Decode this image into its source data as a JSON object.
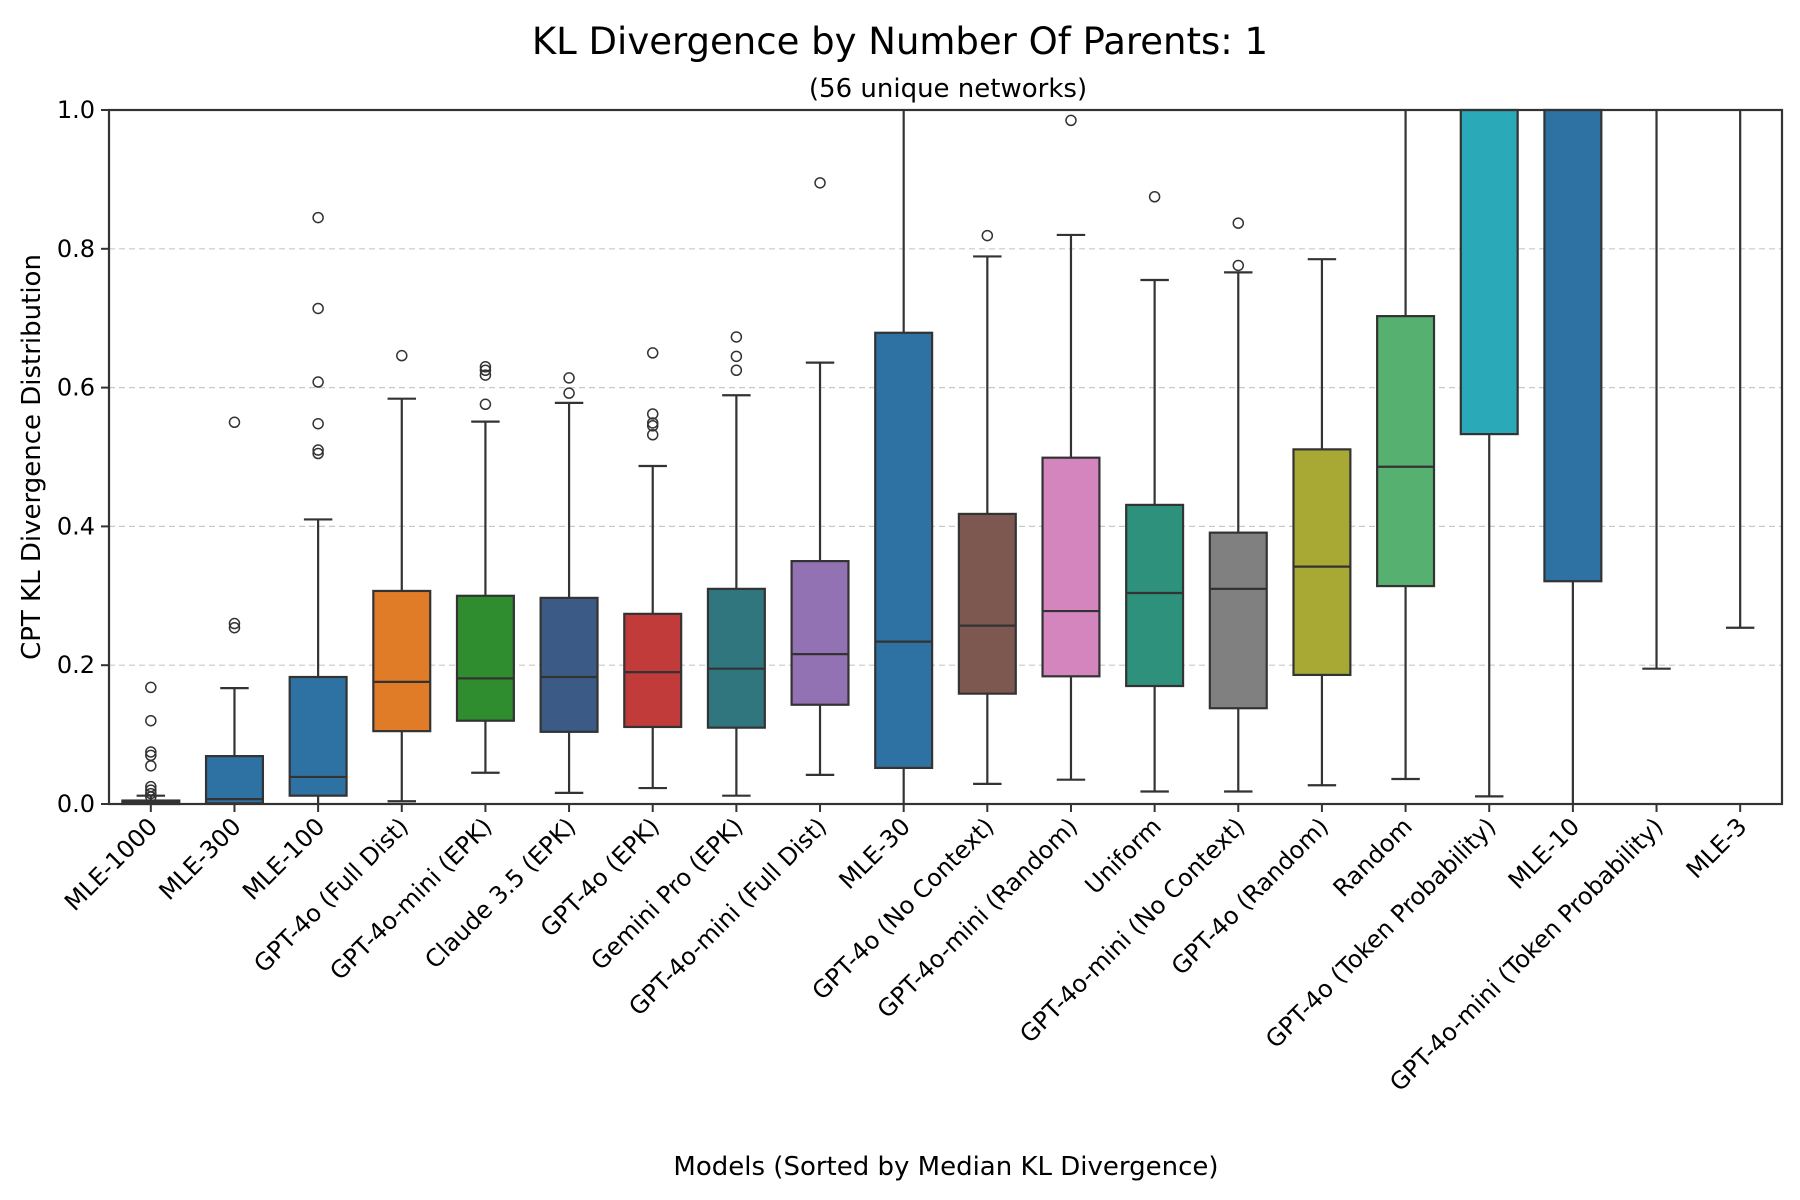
{
  "chart_data": {
    "type": "box",
    "title": "KL Divergence by Number Of Parents: 1",
    "subtitle": "(56 unique networks)",
    "xlabel": "Models (Sorted by Median KL Divergence)",
    "ylabel": "CPT KL Divergence Distribution",
    "ylim": [
      0.0,
      1.0
    ],
    "yticks": [
      "0.0",
      "0.2",
      "0.4",
      "0.6",
      "0.8",
      "1.0"
    ],
    "grid": "horizontal dashed",
    "boxes": [
      {
        "label": "MLE-1000",
        "color": "#2e72a4",
        "q1": 0.0,
        "median": 0.002,
        "q3": 0.005,
        "whisker_low": 0.0,
        "whisker_high": 0.012,
        "fliers": [
          0.168,
          0.12,
          0.075,
          0.07,
          0.055,
          0.025,
          0.02,
          0.015,
          0.01
        ]
      },
      {
        "label": "MLE-300",
        "color": "#2e72a4",
        "q1": 0.001,
        "median": 0.007,
        "q3": 0.069,
        "whisker_low": 0.0,
        "whisker_high": 0.167,
        "fliers": [
          0.55,
          0.26,
          0.254
        ]
      },
      {
        "label": "MLE-100",
        "color": "#2e72a4",
        "q1": 0.012,
        "median": 0.039,
        "q3": 0.183,
        "whisker_low": 0.0,
        "whisker_high": 0.41,
        "fliers": [
          0.845,
          0.714,
          0.608,
          0.548,
          0.51,
          0.505
        ]
      },
      {
        "label": "GPT-4o (Full Dist)",
        "color": "#e07b27",
        "q1": 0.105,
        "median": 0.176,
        "q3": 0.307,
        "whisker_low": 0.004,
        "whisker_high": 0.584,
        "fliers": [
          0.646
        ]
      },
      {
        "label": "GPT-4o-mini (EPK)",
        "color": "#2f8c2f",
        "q1": 0.12,
        "median": 0.181,
        "q3": 0.3,
        "whisker_low": 0.045,
        "whisker_high": 0.551,
        "fliers": [
          0.63,
          0.625,
          0.618,
          0.576
        ]
      },
      {
        "label": "Claude 3.5 (EPK)",
        "color": "#3b5b86",
        "q1": 0.104,
        "median": 0.183,
        "q3": 0.297,
        "whisker_low": 0.016,
        "whisker_high": 0.578,
        "fliers": [
          0.614,
          0.592
        ]
      },
      {
        "label": "GPT-4o (EPK)",
        "color": "#c23b3b",
        "q1": 0.111,
        "median": 0.19,
        "q3": 0.274,
        "whisker_low": 0.023,
        "whisker_high": 0.487,
        "fliers": [
          0.65,
          0.562,
          0.549,
          0.545,
          0.532
        ]
      },
      {
        "label": "Gemini Pro (EPK)",
        "color": "#2f767f",
        "q1": 0.11,
        "median": 0.195,
        "q3": 0.31,
        "whisker_low": 0.012,
        "whisker_high": 0.589,
        "fliers": [
          0.673,
          0.645,
          0.625
        ]
      },
      {
        "label": "GPT-4o-mini (Full Dist)",
        "color": "#9272b2",
        "q1": 0.143,
        "median": 0.216,
        "q3": 0.35,
        "whisker_low": 0.042,
        "whisker_high": 0.636,
        "fliers": [
          0.895
        ]
      },
      {
        "label": "MLE-30",
        "color": "#2e72a4",
        "q1": 0.052,
        "median": 0.234,
        "q3": 0.679,
        "whisker_low": 0.0,
        "whisker_high": 1.0,
        "fliers": []
      },
      {
        "label": "GPT-4o (No Context)",
        "color": "#7d5850",
        "q1": 0.159,
        "median": 0.257,
        "q3": 0.418,
        "whisker_low": 0.029,
        "whisker_high": 0.789,
        "fliers": [
          0.819
        ]
      },
      {
        "label": "GPT-4o-mini (Random)",
        "color": "#d485be",
        "q1": 0.184,
        "median": 0.278,
        "q3": 0.499,
        "whisker_low": 0.035,
        "whisker_high": 0.82,
        "fliers": [
          0.985
        ]
      },
      {
        "label": "Uniform",
        "color": "#2d917c",
        "q1": 0.17,
        "median": 0.304,
        "q3": 0.431,
        "whisker_low": 0.018,
        "whisker_high": 0.755,
        "fliers": [
          0.875
        ]
      },
      {
        "label": "GPT-4o-mini (No Context)",
        "color": "#808080",
        "q1": 0.138,
        "median": 0.31,
        "q3": 0.391,
        "whisker_low": 0.018,
        "whisker_high": 0.766,
        "fliers": [
          0.837,
          0.776
        ]
      },
      {
        "label": "GPT-4o (Random)",
        "color": "#a8a935",
        "q1": 0.186,
        "median": 0.342,
        "q3": 0.511,
        "whisker_low": 0.027,
        "whisker_high": 0.785,
        "fliers": []
      },
      {
        "label": "Random",
        "color": "#56b06f",
        "q1": 0.314,
        "median": 0.486,
        "q3": 0.703,
        "whisker_low": 0.036,
        "whisker_high": 1.0,
        "fliers": []
      },
      {
        "label": "GPT-4o (Token Probability)",
        "color": "#2aa9b8",
        "q1": 0.533,
        "median": 1.0,
        "q3": 1.0,
        "whisker_low": 0.011,
        "whisker_high": 1.0,
        "fliers": []
      },
      {
        "label": "MLE-10",
        "color": "#2e72a4",
        "q1": 0.321,
        "median": 1.0,
        "q3": 1.0,
        "whisker_low": 0.0,
        "whisker_high": 1.0,
        "fliers": []
      },
      {
        "label": "GPT-4o-mini (Token Probability)",
        "color": "#2e72a4",
        "q1": 1.0,
        "median": 1.0,
        "q3": 1.0,
        "whisker_low": 0.195,
        "whisker_high": 1.0,
        "fliers": []
      },
      {
        "label": "MLE-3",
        "color": "#2e72a4",
        "q1": 1.0,
        "median": 1.0,
        "q3": 1.0,
        "whisker_low": 0.254,
        "whisker_high": 1.0,
        "fliers": []
      }
    ]
  }
}
